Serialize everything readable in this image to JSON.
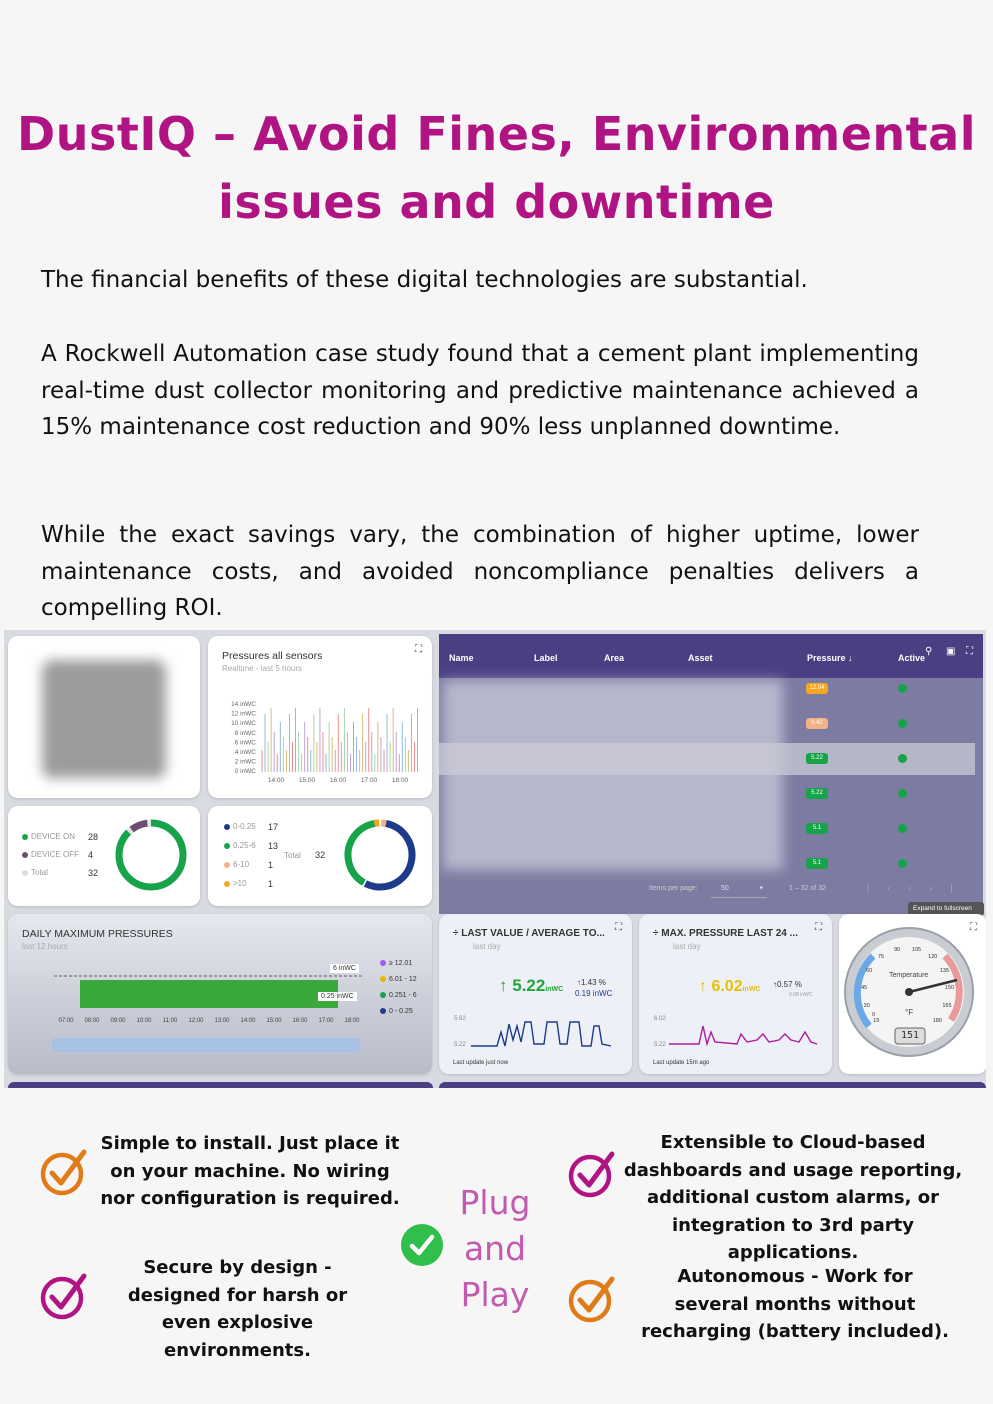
{
  "title": {
    "line1": "DustIQ – Avoid Fines, Environmental",
    "line2": "issues and downtime"
  },
  "paragraphs": {
    "p1": "The financial benefits of these digital technologies are substantial.",
    "p2": "A Rockwell Automation case study found that a cement plant implementing real-time dust collector monitoring and predictive maintenance achieved a 15% maintenance cost reduction and 90% less unplanned downtime.",
    "p3": "While the exact savings vary, the combination of higher uptime, lower maintenance costs, and avoided noncompliance penalties delivers a compelling ROI."
  },
  "dashboard": {
    "pressures_card": {
      "title": "Pressures all sensors",
      "subtitle": "Realtime - last 5 hours",
      "y_ticks": [
        "14 inWC",
        "12 inWC",
        "10 inWC",
        "8 inWC",
        "6 inWC",
        "4 inWC",
        "2 inWC",
        "0 inWC"
      ],
      "x_ticks": [
        "14:00",
        "15:00",
        "16:00",
        "17:00",
        "18:00"
      ]
    },
    "device_card": {
      "items": [
        {
          "label": "DEVICE ON",
          "value": "28",
          "color": "#16a34a"
        },
        {
          "label": "DEVICE OFF",
          "value": "4",
          "color": "#6b4e71"
        },
        {
          "label": "Total",
          "value": "32",
          "color": "#dddddd"
        }
      ],
      "on_fraction": 0.875
    },
    "range_card": {
      "items": [
        {
          "label": "0-0.25",
          "value": "17",
          "color": "#1e3a8a"
        },
        {
          "label": "0.25-6",
          "value": "13",
          "color": "#16a34a"
        },
        {
          "label": "6-10",
          "value": "1",
          "color": "#f4b183"
        },
        {
          "label": ">10",
          "value": "1",
          "color": "#f5a623"
        }
      ],
      "total_label": "Total",
      "total_value": "32"
    },
    "daily_card": {
      "title": "DAILY MAXIMUM PRESSURES",
      "subtitle": "last 12 hours",
      "label_high": "6 inWC",
      "label_low": "0.25 inWC",
      "x_ticks": [
        "07:00",
        "08:00",
        "09:00",
        "10:00",
        "11:00",
        "12:00",
        "13:00",
        "14:00",
        "15:00",
        "16:00",
        "17:00",
        "18:00"
      ],
      "legend": [
        {
          "label": "≥ 12.01",
          "color": "#a855f7"
        },
        {
          "label": "6.01 - 12",
          "color": "#eab308"
        },
        {
          "label": "0.251 - 6",
          "color": "#16a34a"
        },
        {
          "label": "0 - 0.25",
          "color": "#1e3a8a"
        }
      ]
    },
    "table": {
      "headers": [
        "Name",
        "Label",
        "Area",
        "Asset",
        "Pressure ↓",
        "Active"
      ],
      "pills": [
        {
          "text": "12.04",
          "color": "#f5a623"
        },
        {
          "text": "6.42",
          "color": "#f4b183"
        },
        {
          "text": "5.22",
          "color": "#16a34a"
        },
        {
          "text": "5.22",
          "color": "#16a34a"
        },
        {
          "text": "5.1",
          "color": "#16a34a"
        },
        {
          "text": "5.1",
          "color": "#16a34a"
        }
      ],
      "items_per_page_label": "Items per page:",
      "items_per_page": "50",
      "range": "1 – 32 of 32",
      "tooltip": "Expand to fullscreen"
    },
    "last_value_card": {
      "title": "LAST VALUE / AVERAGE TO...",
      "subtitle": "last day",
      "value": "5.22",
      "unit": "inWC",
      "change": "1.43 %",
      "avg": "0.19 inWC",
      "y_top": "5.62",
      "y_bottom": "5.22",
      "footer": "Last update just now",
      "color": "#22a53a"
    },
    "max_pressure_card": {
      "title": "MAX. PRESSURE LAST 24 ...",
      "subtitle": "last day",
      "value": "6.02",
      "unit": "inWC",
      "change": "0.57 %",
      "avg": "0.08 inWC",
      "y_top": "6.02",
      "y_bottom": "5.22",
      "footer": "Last update 15m ago",
      "color": "#e6c000"
    },
    "gauge_card": {
      "label": "Temperature",
      "unit": "°F",
      "readout": "151",
      "ticks": [
        "15",
        "30",
        "45",
        "60",
        "75",
        "90",
        "105",
        "120",
        "135",
        "150",
        "165",
        "180",
        "0"
      ]
    }
  },
  "features": {
    "f1": "Simple to install. Just place it on your machine. No wiring nor configuration is required.",
    "f2": "Secure by design - designed for harsh or even explosive environments.",
    "f3": "Extensible to Cloud-based dashboards and usage reporting, additional custom alarms, or integration to 3rd party applications.",
    "f4": "Autonomous - Work for several months without recharging (battery included).",
    "plug1": "Plug",
    "plug2": "and",
    "plug3": "Play"
  },
  "colors": {
    "title": "#b01382",
    "check_orange": "#e07b18",
    "check_magenta": "#b01382",
    "check_green": "#2fbf4a",
    "plug_text": "#c05bb0"
  }
}
